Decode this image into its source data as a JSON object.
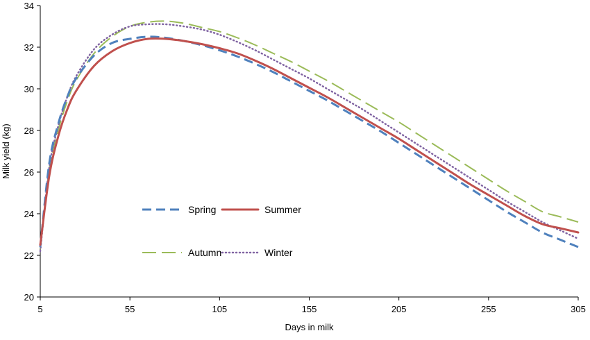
{
  "chart_data": {
    "type": "line",
    "title": "",
    "xlabel": "Days in milk",
    "ylabel": "Milk yield (kg)",
    "xlim": [
      5,
      305
    ],
    "ylim": [
      20,
      34
    ],
    "xticks": [
      5,
      55,
      105,
      155,
      205,
      255,
      305
    ],
    "yticks": [
      20,
      22,
      24,
      26,
      28,
      30,
      32,
      34
    ],
    "grid": false,
    "legend_position": "center-left",
    "x": [
      5,
      10,
      15,
      20,
      25,
      35,
      45,
      55,
      65,
      75,
      85,
      95,
      105,
      115,
      125,
      135,
      145,
      155,
      165,
      175,
      185,
      195,
      205,
      215,
      225,
      235,
      245,
      255,
      265,
      275,
      285,
      295,
      305
    ],
    "series": [
      {
        "name": "Spring",
        "color": "#4f81bd",
        "style": "dashed",
        "values": [
          22.4,
          26.4,
          28.3,
          29.6,
          30.5,
          31.6,
          32.2,
          32.4,
          32.5,
          32.45,
          32.3,
          32.1,
          31.85,
          31.55,
          31.2,
          30.8,
          30.35,
          29.9,
          29.45,
          28.95,
          28.45,
          27.95,
          27.4,
          26.85,
          26.3,
          25.75,
          25.2,
          24.65,
          24.1,
          23.6,
          23.1,
          22.75,
          22.4
        ]
      },
      {
        "name": "Summer",
        "color": "#c0504d",
        "style": "solid",
        "values": [
          22.5,
          25.8,
          27.7,
          29.0,
          29.9,
          31.1,
          31.8,
          32.2,
          32.4,
          32.4,
          32.3,
          32.15,
          31.95,
          31.7,
          31.35,
          30.95,
          30.5,
          30.05,
          29.6,
          29.1,
          28.6,
          28.1,
          27.6,
          27.05,
          26.5,
          25.95,
          25.4,
          24.9,
          24.4,
          23.9,
          23.5,
          23.3,
          23.1
        ]
      },
      {
        "name": "Autumn",
        "color": "#9bbb59",
        "style": "long-dash",
        "values": [
          22.3,
          26.1,
          28.0,
          29.4,
          30.4,
          31.7,
          32.5,
          33.0,
          33.2,
          33.25,
          33.15,
          32.95,
          32.75,
          32.45,
          32.1,
          31.7,
          31.3,
          30.85,
          30.4,
          29.9,
          29.4,
          28.9,
          28.4,
          27.85,
          27.3,
          26.75,
          26.2,
          25.65,
          25.1,
          24.6,
          24.1,
          23.85,
          23.6
        ]
      },
      {
        "name": "Winter",
        "color": "#8064a2",
        "style": "dotted",
        "values": [
          22.2,
          26.2,
          28.2,
          29.6,
          30.6,
          31.9,
          32.6,
          33.0,
          33.1,
          33.1,
          33.0,
          32.85,
          32.6,
          32.25,
          31.85,
          31.4,
          30.95,
          30.5,
          30.0,
          29.5,
          29.0,
          28.45,
          27.9,
          27.35,
          26.8,
          26.25,
          25.7,
          25.15,
          24.6,
          24.1,
          23.6,
          23.2,
          22.8
        ]
      }
    ]
  }
}
